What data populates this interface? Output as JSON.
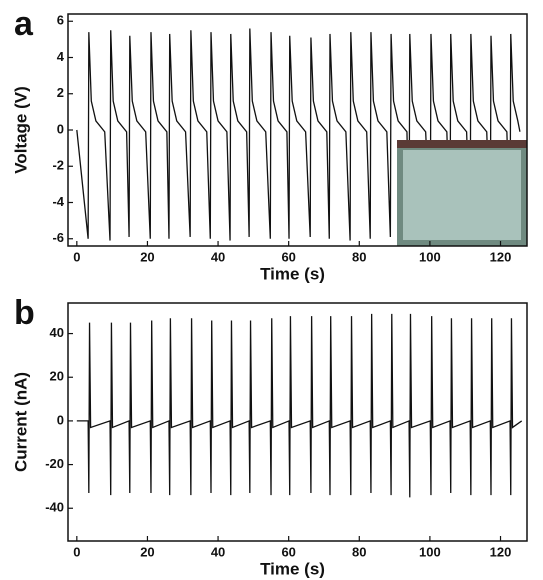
{
  "chart_data": [
    {
      "type": "line",
      "panel_label": "a",
      "x_label": "Time (s)",
      "y_label": "Voltage (V)",
      "xlim": [
        -2.5,
        127.5
      ],
      "ylim": [
        -6.4,
        6.4
      ],
      "xticks": [
        0,
        20,
        40,
        60,
        80,
        100,
        120
      ],
      "yticks": [
        -6,
        -4,
        -2,
        0,
        2,
        4,
        6
      ],
      "x": [
        0,
        3.2,
        3.4,
        4.1,
        5.4,
        7.9,
        9.4,
        9.6,
        10.3,
        11.6,
        14.1,
        14.8,
        15.0,
        15.7,
        17.0,
        19.5,
        20.8,
        21.0,
        21.7,
        23.0,
        25.5,
        26.1,
        26.3,
        27.0,
        28.3,
        30.8,
        32.1,
        32.3,
        33.0,
        34.3,
        36.8,
        37.8,
        38.0,
        38.7,
        40.0,
        42.5,
        43.4,
        43.6,
        44.3,
        45.6,
        48.1,
        48.8,
        49.0,
        49.7,
        51.0,
        53.5,
        54.8,
        55.0,
        55.7,
        57.0,
        59.5,
        60.1,
        60.3,
        61.0,
        62.3,
        64.8,
        66.1,
        66.3,
        67.0,
        68.3,
        70.8,
        71.5,
        71.7,
        72.4,
        73.7,
        76.2,
        77.4,
        77.6,
        78.3,
        79.6,
        82.1,
        83.1,
        83.3,
        84.0,
        85.3,
        87.8,
        88.8,
        89.0,
        89.7,
        91.0,
        93.5,
        94.1,
        94.3,
        95.0,
        96.3,
        98.8,
        100.1,
        100.3,
        101.0,
        102.3,
        104.8,
        105.7,
        105.9,
        106.6,
        107.9,
        110.4,
        111.4,
        111.6,
        112.3,
        113.6,
        116.1,
        117.1,
        117.3,
        118.0,
        119.3,
        121.8,
        122.7,
        122.9,
        123.6,
        124.9,
        125.5
      ],
      "series": [
        {
          "color": "#111111",
          "values": [
            0,
            -6.0,
            5.4,
            1.6,
            0.5,
            -0.1,
            -6.1,
            5.5,
            1.6,
            0.5,
            -0.1,
            -5.9,
            5.2,
            1.6,
            0.5,
            -0.1,
            -6.0,
            5.4,
            1.6,
            0.5,
            -0.1,
            -6.0,
            5.3,
            1.6,
            0.5,
            -0.1,
            -5.9,
            5.5,
            1.6,
            0.5,
            -0.1,
            -6.0,
            5.4,
            1.6,
            0.5,
            -0.1,
            -6.1,
            5.3,
            1.6,
            0.5,
            -0.1,
            -5.9,
            5.6,
            1.6,
            0.5,
            -0.1,
            -6.0,
            5.4,
            1.6,
            0.5,
            -0.1,
            -6.0,
            5.2,
            1.6,
            0.5,
            -0.1,
            -5.9,
            5.1,
            1.6,
            0.5,
            -0.1,
            -6.0,
            5.3,
            1.6,
            0.5,
            -0.1,
            -6.1,
            5.4,
            1.6,
            0.5,
            -0.1,
            -6.0,
            5.4,
            1.6,
            0.5,
            -0.1,
            -5.9,
            5.3,
            1.6,
            0.5,
            -0.1,
            -6.0,
            5.3,
            1.6,
            0.5,
            -0.1,
            -6.0,
            5.3,
            1.6,
            0.5,
            -0.1,
            -5.9,
            5.3,
            1.6,
            0.5,
            -0.1,
            -6.0,
            5.3,
            1.6,
            0.5,
            -0.1,
            -6.0,
            5.2,
            1.6,
            0.5,
            -0.1,
            -6.0,
            5.3,
            1.6,
            0.5,
            -0.1
          ]
        }
      ]
    },
    {
      "type": "line",
      "panel_label": "b",
      "x_label": "Time (s)",
      "y_label": "Current (nA)",
      "xlim": [
        -2.5,
        127.5
      ],
      "ylim": [
        -55,
        54
      ],
      "xticks": [
        0,
        20,
        40,
        60,
        80,
        100,
        120
      ],
      "yticks": [
        -40,
        -20,
        0,
        20,
        40
      ],
      "x": [
        0,
        3.2,
        3.4,
        3.6,
        3.9,
        9.4,
        9.6,
        9.8,
        10.1,
        14.8,
        15.0,
        15.2,
        15.5,
        20.8,
        21.0,
        21.2,
        21.5,
        26.1,
        26.3,
        26.5,
        26.8,
        32.1,
        32.3,
        32.5,
        32.8,
        37.8,
        38.0,
        38.2,
        38.5,
        43.4,
        43.6,
        43.8,
        44.1,
        48.8,
        49.0,
        49.2,
        49.5,
        54.8,
        55.0,
        55.2,
        55.5,
        60.1,
        60.3,
        60.5,
        60.8,
        66.1,
        66.3,
        66.5,
        66.8,
        71.5,
        71.7,
        71.9,
        72.2,
        77.4,
        77.6,
        77.8,
        78.1,
        83.1,
        83.3,
        83.5,
        83.8,
        88.8,
        89.0,
        89.2,
        89.5,
        94.1,
        94.3,
        94.5,
        94.8,
        100.1,
        100.3,
        100.5,
        100.8,
        105.7,
        105.9,
        106.1,
        106.4,
        111.4,
        111.6,
        111.8,
        112.1,
        117.1,
        117.3,
        117.5,
        117.8,
        122.7,
        122.9,
        123.1,
        123.4,
        126
      ],
      "series": [
        {
          "color": "#111111",
          "values": [
            0,
            0,
            -33,
            45,
            -3,
            0,
            -34,
            45,
            -3,
            0,
            -33,
            45,
            -3,
            0,
            -33,
            46,
            -3,
            0,
            -34,
            47,
            -3,
            0,
            -34,
            47,
            -3,
            0,
            -33,
            46,
            -3,
            0,
            -34,
            46,
            -3,
            0,
            -33,
            46,
            -3,
            0,
            -34,
            47,
            -3,
            0,
            -34,
            48,
            -3,
            0,
            -33,
            48,
            -3,
            0,
            -34,
            48,
            -3,
            0,
            -34,
            48,
            -3,
            0,
            -33,
            49,
            -3,
            0,
            -34,
            49,
            -3,
            0,
            -35,
            49,
            -3,
            0,
            -34,
            48,
            -3,
            0,
            -33,
            47,
            -3,
            0,
            -34,
            47,
            -3,
            0,
            -34,
            47,
            -3,
            0,
            -34,
            47,
            -3,
            0
          ]
        }
      ]
    }
  ]
}
